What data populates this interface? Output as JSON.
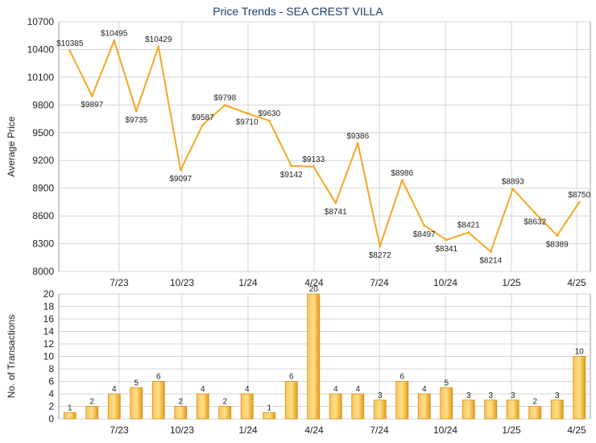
{
  "title": "Price Trends - SEA CREST VILLA",
  "chart_data": [
    {
      "type": "line",
      "ylabel": "Average Price",
      "ylim": [
        8000,
        10700
      ],
      "yticks": [
        8000,
        8300,
        8600,
        8900,
        9200,
        9500,
        9800,
        10100,
        10400,
        10700
      ],
      "x_tick_labels": [
        "7/23",
        "10/23",
        "1/24",
        "4/24",
        "7/24",
        "10/24",
        "1/25",
        "4/25"
      ],
      "series": [
        {
          "values": [
            10385,
            9897,
            10495,
            9735,
            10429,
            9097,
            9587,
            9798,
            9710,
            9630,
            9142,
            9133,
            8741,
            9386,
            8272,
            8986,
            8497,
            8341,
            8421,
            8214,
            8893,
            8632,
            8389,
            8750
          ],
          "labels": [
            "$10385",
            "$9897",
            "$10495",
            "$9735",
            "$10429",
            "$9097",
            "$9587",
            "$9798",
            "$9710",
            "$9630",
            "$9142",
            "$9133",
            "$8741",
            "$9386",
            "$8272",
            "$8986",
            "$8497",
            "$8341",
            "$8421",
            "$8214",
            "$8893",
            "$8632",
            "$8389",
            "$8750"
          ]
        }
      ],
      "color": "#f5a623",
      "grid": true
    },
    {
      "type": "bar",
      "ylabel": "No. of Transactions",
      "ylim": [
        0,
        20
      ],
      "yticks": [
        0,
        2,
        4,
        6,
        8,
        10,
        12,
        14,
        16,
        18,
        20
      ],
      "x_tick_labels": [
        "7/23",
        "10/23",
        "1/24",
        "4/24",
        "7/24",
        "10/24",
        "1/25",
        "4/25"
      ],
      "values": [
        1,
        2,
        4,
        5,
        6,
        2,
        4,
        2,
        4,
        1,
        6,
        20,
        4,
        4,
        3,
        6,
        4,
        5,
        3,
        3,
        3,
        2,
        3,
        10
      ],
      "color": "#f0a820",
      "grid": true
    }
  ]
}
